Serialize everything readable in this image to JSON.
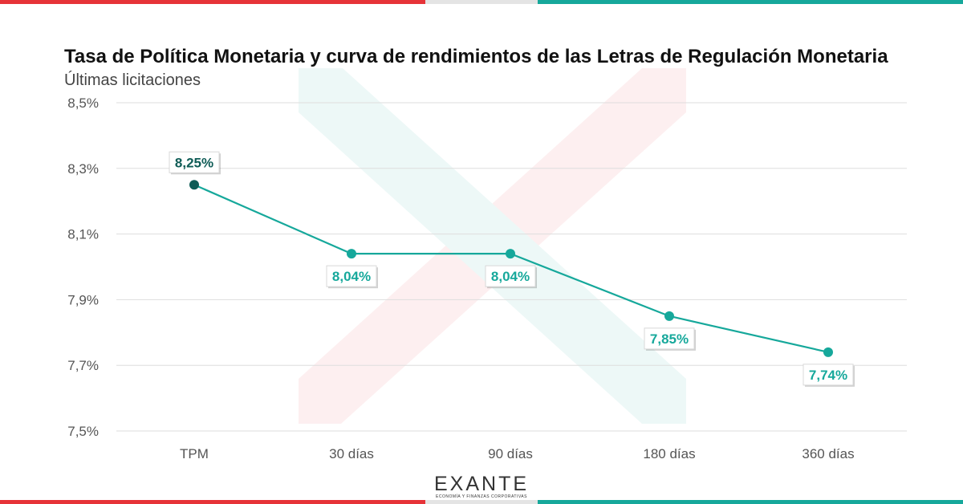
{
  "title": "Tasa de Política Monetaria y curva de rendimientos de las Letras de Regulación Monetaria",
  "subtitle": "Últimas licitaciones",
  "logo": {
    "text": "EXANTE",
    "tagline": "ECONOMÍA Y FINANZAS CORPORATIVAS"
  },
  "colors": {
    "accent_red": "#e63338",
    "accent_teal": "#16a89b",
    "first_point": "#0f5c56",
    "line": "#16a89b"
  },
  "chart_data": {
    "type": "line",
    "title": "Tasa de Política Monetaria y curva de rendimientos de las Letras de Regulación Monetaria",
    "subtitle": "Últimas licitaciones",
    "categories": [
      "TPM",
      "30 días",
      "90 días",
      "180 días",
      "360 días"
    ],
    "values": [
      8.25,
      8.04,
      8.04,
      7.85,
      7.74
    ],
    "data_labels": [
      "8,25%",
      "8,04%",
      "8,04%",
      "7,85%",
      "7,74%"
    ],
    "ylim": [
      7.5,
      8.5
    ],
    "yticks": [
      8.5,
      8.3,
      8.1,
      7.9,
      7.7,
      7.5
    ],
    "ytick_labels": [
      "8,5%",
      "8,3%",
      "8,1%",
      "7,9%",
      "7,7%",
      "7,5%"
    ],
    "grid": true,
    "legend": "none"
  }
}
